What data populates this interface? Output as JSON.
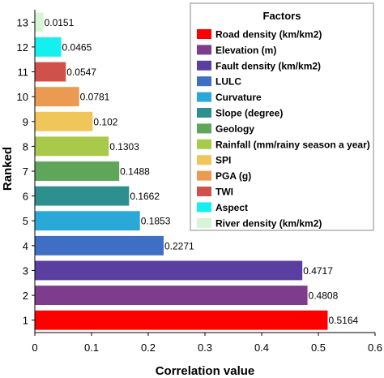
{
  "chart_data": {
    "type": "bar",
    "orientation": "horizontal",
    "xlabel": "Correlation value",
    "ylabel": "Ranked",
    "xlim": [
      0,
      0.6
    ],
    "xticks": [
      "0",
      "0.1",
      "0.2",
      "0.3",
      "0.4",
      "0.5",
      "0.6"
    ],
    "categories": [
      "1",
      "2",
      "3",
      "4",
      "5",
      "6",
      "7",
      "8",
      "9",
      "10",
      "11",
      "12",
      "13"
    ],
    "values": [
      0.5164,
      0.4808,
      0.4717,
      0.2271,
      0.1853,
      0.1662,
      0.1488,
      0.1303,
      0.102,
      0.0781,
      0.0547,
      0.0465,
      0.0151
    ],
    "value_labels": [
      "0.5164",
      "0.4808",
      "0.4717",
      "0.2271",
      "0.1853",
      "0.1662",
      "0.1488",
      "0.1303",
      "0.102",
      "0.0781",
      "0.0547",
      "0.0465",
      "0.0151"
    ],
    "colors": [
      "#ff0000",
      "#7d3c8c",
      "#5a3fa0",
      "#3f6fc4",
      "#2aa8d8",
      "#2e8f8f",
      "#5fa65a",
      "#a9c94a",
      "#f0c55a",
      "#eb9a52",
      "#d0504a",
      "#14f0f0",
      "#d6f4d6"
    ],
    "grid": false,
    "legend": {
      "title": "Factors",
      "placement": "top-right",
      "entries": [
        "Road density (km/km2)",
        "Elevation (m)",
        "Fault density (km/km2)",
        "LULC",
        "Curvature",
        "Slope (degree)",
        "Geology",
        "Rainfall (mm/rainy season a year)",
        "SPI",
        "PGA (g)",
        "TWI",
        "Aspect",
        "River density (km/km2)"
      ]
    }
  }
}
